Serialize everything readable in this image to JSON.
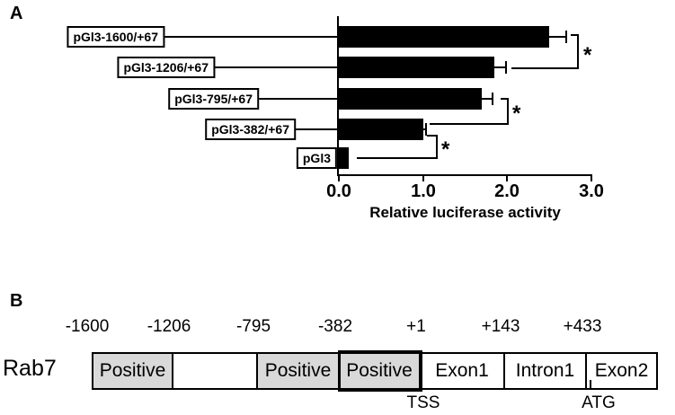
{
  "panel_a": {
    "label": "A"
  },
  "chart_data": {
    "type": "bar",
    "orientation": "horizontal",
    "categories": [
      "pGl3-1600/+67",
      "pGl3-1206/+67",
      "pGl3-795/+67",
      "pGl3-382/+67",
      "pGl3"
    ],
    "values": [
      2.5,
      1.85,
      1.7,
      1.0,
      0.12
    ],
    "errors": [
      0.2,
      0.14,
      0.13,
      0.03,
      0
    ],
    "xlabel": "Relative luciferase activity",
    "xlim": [
      0,
      3
    ],
    "xticks": [
      0,
      1,
      2,
      3
    ],
    "xtick_labels": [
      "0.0",
      "1.0",
      "2.0",
      "3.0"
    ],
    "bar_color": "#000000",
    "grid": false,
    "legend": false,
    "significance_brackets": [
      {
        "between": [
          0,
          1
        ],
        "label": "*"
      },
      {
        "between": [
          2,
          3
        ],
        "label": "*"
      },
      {
        "between": [
          3,
          4
        ],
        "label": "*"
      }
    ]
  },
  "panel_b": {
    "label": "B",
    "gene_label": "Rab7",
    "coordinates": [
      "-1600",
      "-1206",
      "-795",
      "-382",
      "+1",
      "+143",
      "+433"
    ],
    "segments": [
      {
        "label": "Positive",
        "shaded": true
      },
      {
        "label": "",
        "shaded": false
      },
      {
        "label": "Positive",
        "shaded": true
      },
      {
        "label": "Positive",
        "shaded": true,
        "highlighted": true
      },
      {
        "label": "Exon1",
        "shaded": false
      },
      {
        "label": "Intron1",
        "shaded": false
      },
      {
        "label": "Exon2",
        "shaded": false
      }
    ],
    "markers": [
      {
        "label": "TSS",
        "at": "+1"
      },
      {
        "label": "ATG",
        "at": "+433"
      }
    ],
    "colors": {
      "shaded_fill": "#d9d9d9",
      "line": "#000000",
      "background": "#ffffff"
    }
  }
}
